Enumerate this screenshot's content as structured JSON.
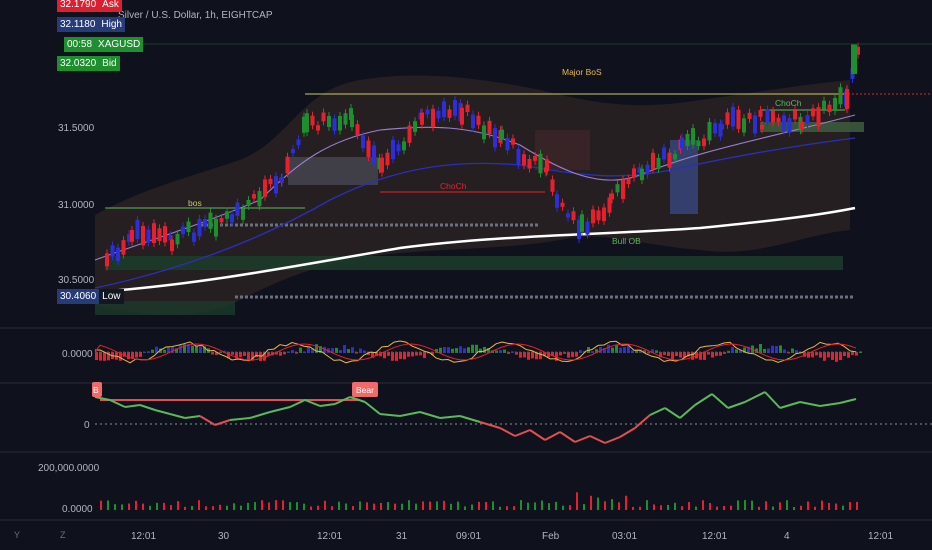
{
  "header": {
    "title": "Silver / U.S. Dollar, 1h, EIGHTCAP",
    "ask_value": "32.1790",
    "ask_label": "Ask",
    "high_value": "32.1180",
    "high_label": "High",
    "countdown": "00:58",
    "symbol": "XAGUSD",
    "bid_value": "32.0320",
    "bid_label": "Bid"
  },
  "price_axis": {
    "ticks": [
      "31.5000",
      "31.0000",
      "30.5000"
    ],
    "low_value": "30.4060",
    "low_label": "Low"
  },
  "time_axis": [
    "12:01",
    "30",
    "12:01",
    "31",
    "09:01",
    "Feb",
    "03:01",
    "12:01",
    "4",
    "12:01"
  ],
  "annotations": {
    "major_bos": "Major BoS",
    "bos": "bos",
    "choch_left": "ChoCh",
    "choch_right": "ChoCh",
    "bull_ob": "Bull OB",
    "bear_tag": "Bear",
    "bull_tag": "B"
  },
  "indicators": {
    "macd_zero": "0.0000",
    "osc_zero": "0",
    "volume_top": "200,000.0000",
    "volume_zero": "0.0000"
  },
  "corner_buttons": {
    "left": "Y",
    "right": "Z"
  },
  "colors": {
    "background": "#0f121c",
    "bull": "#1e8f2e",
    "bear": "#e8202d",
    "bull_blue": "#2b2fd8",
    "ema_white": "#ffffff",
    "ema_blue": "#2a2fb8",
    "ema_purple": "#9b7fd0",
    "osc_green": "#5cb85c",
    "osc_red": "#e05050",
    "ask_bg": "#d92030",
    "high_bg": "#263c78",
    "symbol_bg": "#1e8f2e"
  }
}
